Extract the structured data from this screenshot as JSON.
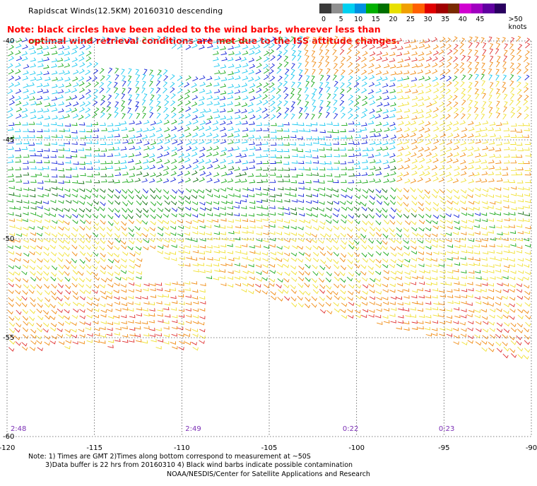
{
  "title": "Rapidscat Winds(12.5KM) 20160310 descending",
  "note": {
    "line1": "Note: black circles have been added to the wind barbs, wherever less than",
    "line2": "optimal wind retrieval conditions are met due to the ISS attitude changes."
  },
  "legend": {
    "unit": ">50 knots",
    "ticks": [
      "0",
      "5",
      "10",
      "15",
      "20",
      "25",
      "30",
      "35",
      "40",
      "45"
    ],
    "colors": [
      "#3a3a3a",
      "#8f8f8f",
      "#00d0f0",
      "#0090e0",
      "#00b000",
      "#007000",
      "#e8e000",
      "#f0a000",
      "#ff6000",
      "#e00000",
      "#a00000",
      "#7a2a00",
      "#d000d0",
      "#a000c0",
      "#6000a0",
      "#2a0060"
    ]
  },
  "map": {
    "lon_labels": [
      "-120",
      "-115",
      "-110",
      "-105",
      "-100",
      "-95",
      "-90"
    ],
    "lat_labels": [
      "-40",
      "-45",
      "-50",
      "-55",
      "-60"
    ],
    "lon_range": [
      -120,
      -90
    ],
    "lat_range": [
      -40,
      -60
    ],
    "times": [
      {
        "text": "2:48",
        "lon": -119.8
      },
      {
        "text": "2:49",
        "lon": -109.8
      },
      {
        "text": "0:22",
        "lon": -100.8
      },
      {
        "text": "0:23",
        "lon": -95.3
      }
    ]
  },
  "footnote": {
    "line1": "Note: 1) Times are GMT 2)Times along bottom correspond to measurement at ~50S",
    "line2": "3)Data buffer is 22 hrs from 20160310 4) Black wind barbs indicate possible contamination"
  },
  "credit": "NOAA/NESDIS/Center for Satellite Applications and Research"
}
